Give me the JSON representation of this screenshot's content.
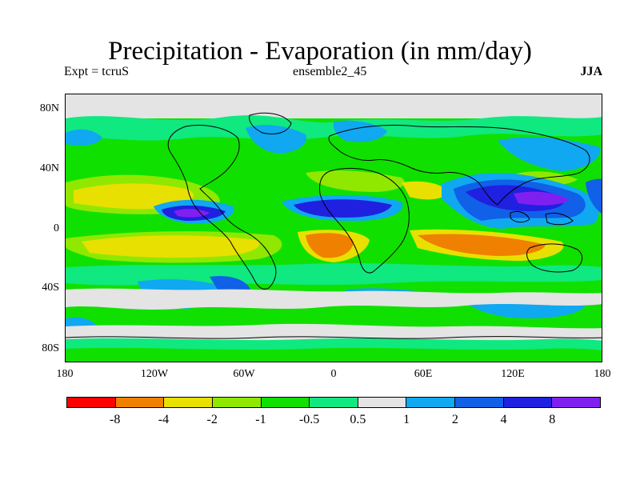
{
  "title": "Precipitation - Evaporation (in mm/day)",
  "subtitle_left": "Expt = tcruS",
  "subtitle_center": "ensemble2_45",
  "subtitle_right": "JJA",
  "lat_labels": [
    "80N",
    "40N",
    "0",
    "40S",
    "80S"
  ],
  "lon_labels": [
    "180",
    "120W",
    "60W",
    "0",
    "60E",
    "120E",
    "180"
  ],
  "colorbar": {
    "colors": [
      "#ff0000",
      "#f08000",
      "#e8e000",
      "#90e800",
      "#10e000",
      "#10e880",
      "#e4e4e4",
      "#10a8f0",
      "#1060e8",
      "#2020e0",
      "#8020f0"
    ],
    "labels": [
      "-8",
      "-4",
      "-2",
      "-1",
      "-0.5",
      "0.5",
      "1",
      "2",
      "4",
      "8"
    ]
  },
  "colors": {
    "green": "#10e000",
    "teal": "#10e880",
    "lime": "#90e800",
    "yellow": "#e8e000",
    "orange": "#f08000",
    "grey": "#e4e4e4",
    "lightblue": "#10a8f0",
    "blue": "#1060e8",
    "darkblue": "#2020e0",
    "purple": "#8020f0"
  }
}
